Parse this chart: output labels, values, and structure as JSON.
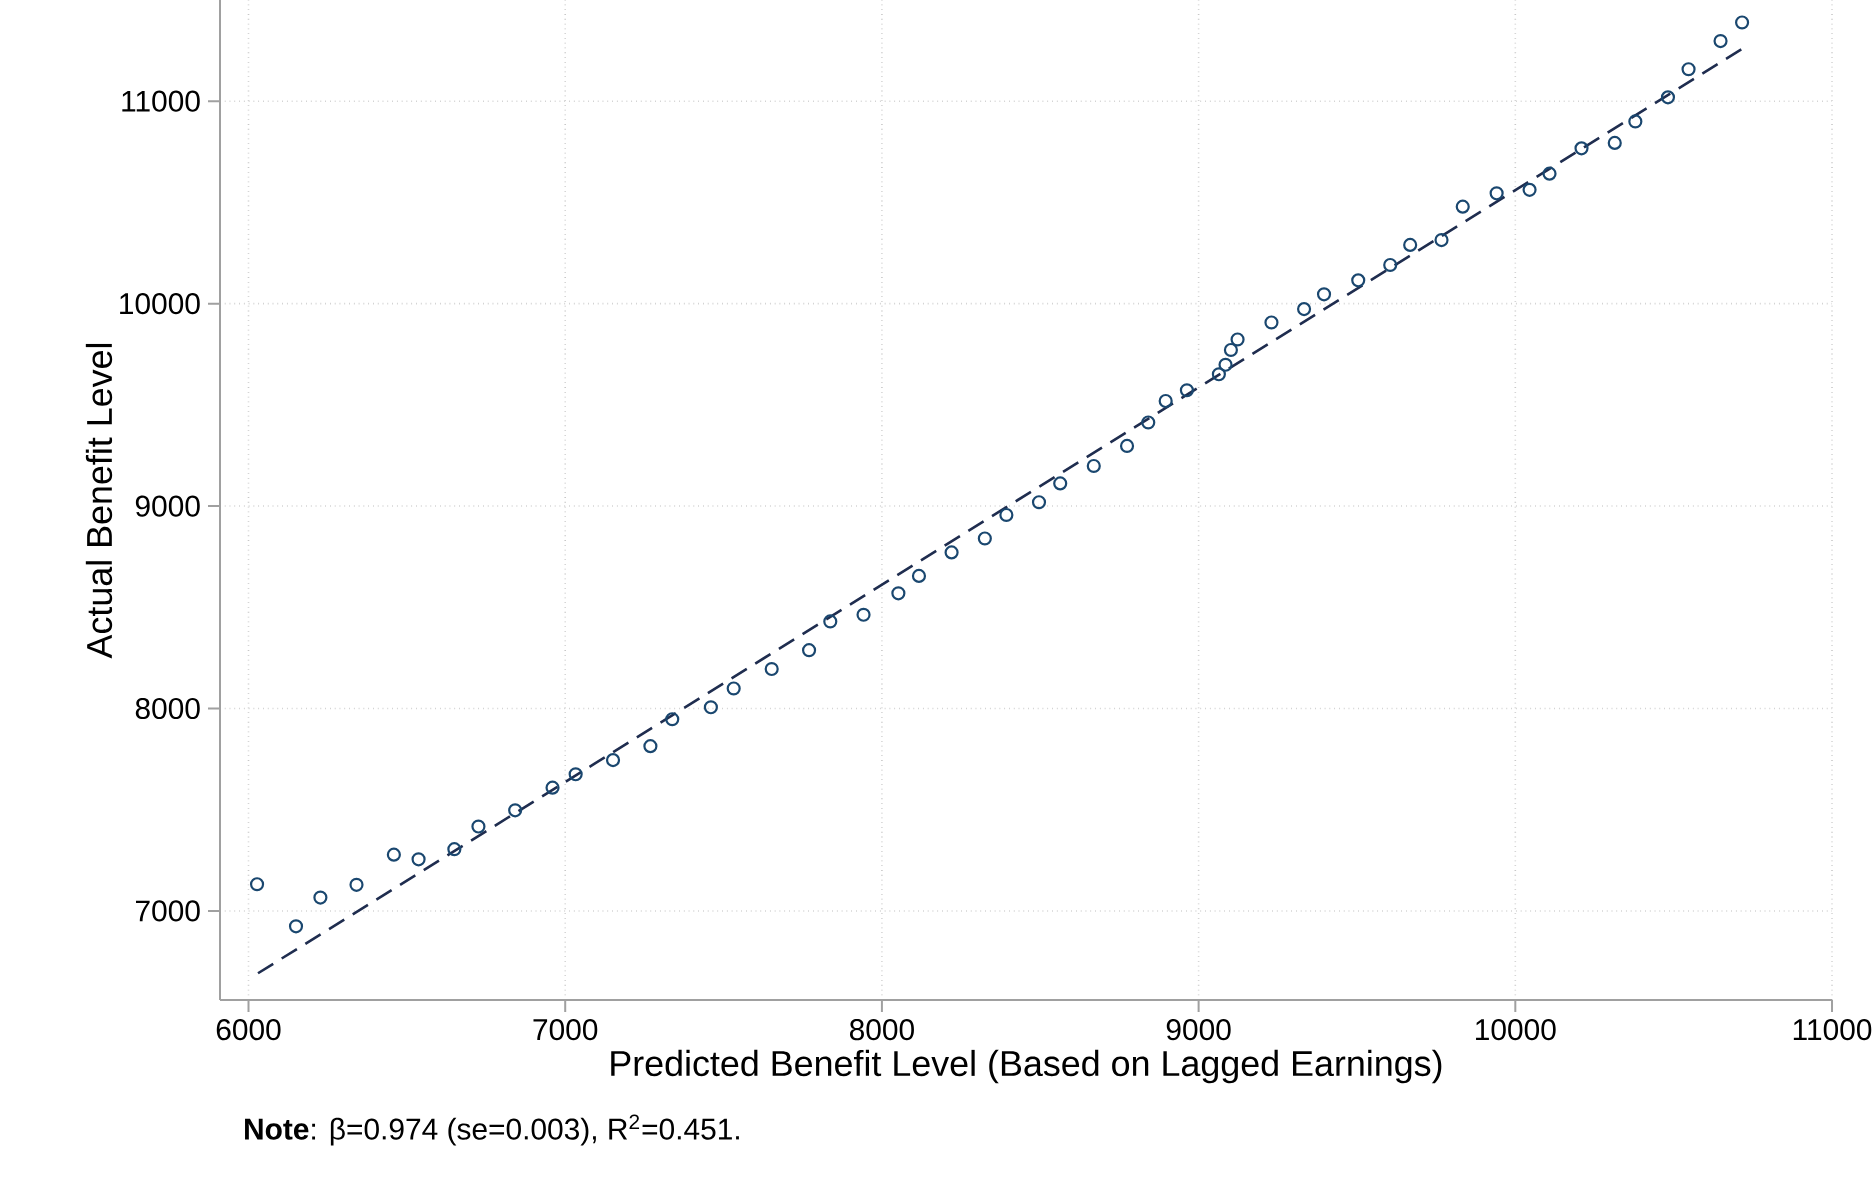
{
  "chart_data": {
    "type": "scatter",
    "xlabel": "Predicted Benefit Level (Based on Lagged Earnings)",
    "ylabel": "Actual Benefit Level",
    "annotations": [
      "**Note**: β=0.974 (se=0.003), R$^{2}$=0.451."
    ],
    "xlim": [
      5910,
      11000
    ],
    "ylim": [
      6560,
      11500
    ],
    "xticks": [
      6000,
      7000,
      8000,
      9000,
      10000,
      11000
    ],
    "yticks": [
      7000,
      8000,
      9000,
      10000,
      11000
    ],
    "grid": true,
    "series": [
      {
        "marker": "circle",
        "color": "#1a476f",
        "x": [
          6027,
          6150,
          6227,
          6341,
          6459,
          6537,
          6650,
          6726,
          6842,
          6960,
          7033,
          7151,
          7269,
          7338,
          7460,
          7532,
          7652,
          7770,
          7837,
          7942,
          8052,
          8117,
          8220,
          8325,
          8393,
          8496,
          8563,
          8669,
          8774,
          8841,
          8896,
          8963,
          9064,
          9085,
          9102,
          9123,
          9230,
          9333,
          9396,
          9504,
          9605,
          9668,
          9767,
          9834,
          9941,
          10045,
          10108,
          10209,
          10314,
          10379,
          10482,
          10547,
          10648,
          10716
        ],
        "values": [
          7132,
          6924,
          7066,
          7129,
          7278,
          7255,
          7305,
          7417,
          7497,
          7609,
          7675,
          7745,
          7814,
          7947,
          8006,
          8099,
          8195,
          8288,
          8430,
          8463,
          8569,
          8655,
          8771,
          8840,
          8956,
          9019,
          9112,
          9198,
          9297,
          9413,
          9519,
          9572,
          9651,
          9698,
          9771,
          9823,
          9907,
          9973,
          10046,
          10115,
          10191,
          10290,
          10314,
          10479,
          10545,
          10562,
          10642,
          10767,
          10794,
          10900,
          11019,
          11158,
          11297,
          11389
        ]
      },
      {
        "type": "line",
        "marker": "none",
        "line_style": "dashed",
        "color": "#1f2d4f",
        "x": [
          6030,
          10730
        ],
        "values": [
          6692,
          11272
        ]
      }
    ]
  }
}
